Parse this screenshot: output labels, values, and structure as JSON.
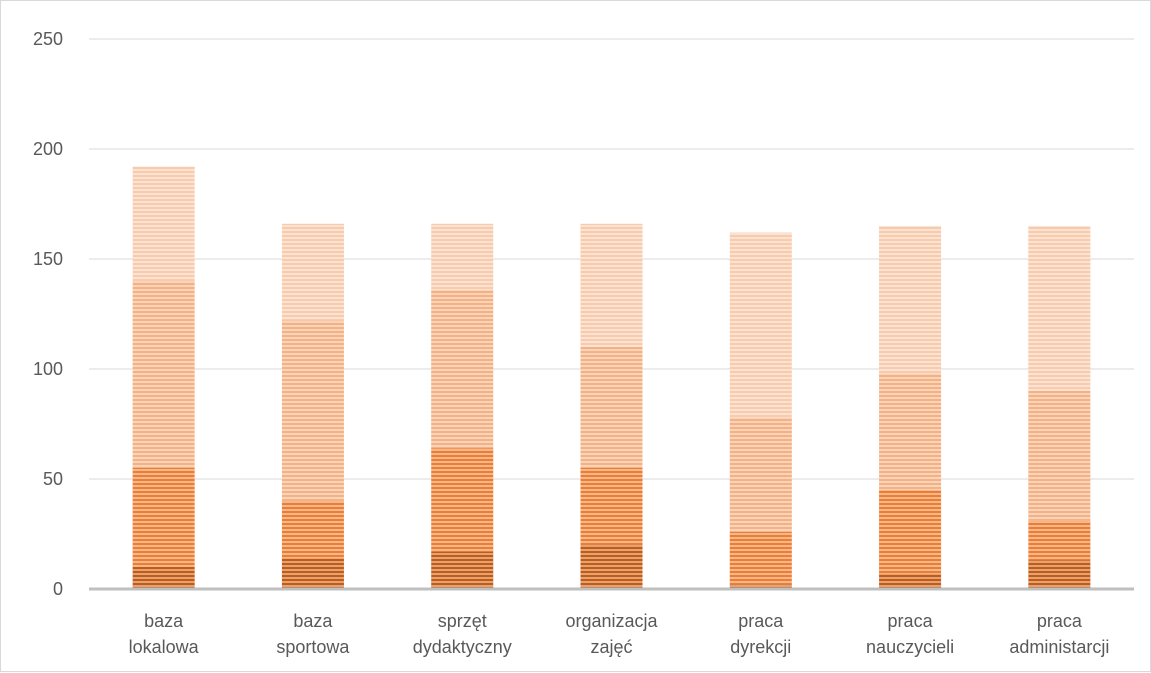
{
  "chart_data": {
    "type": "bar",
    "stacked": true,
    "categories": [
      [
        "baza",
        "lokalowa"
      ],
      [
        "baza",
        "sportowa"
      ],
      [
        "sprzęt",
        "dydaktyczny"
      ],
      [
        "organizacja",
        "zajęć"
      ],
      [
        "praca",
        "dyrekcji"
      ],
      [
        "praca",
        "nauczycieli"
      ],
      [
        "praca",
        "administarcji"
      ]
    ],
    "series": [
      {
        "values": [
          10,
          14,
          17,
          20,
          2,
          7,
          13
        ],
        "color": "#c55a11"
      },
      {
        "values": [
          45,
          26,
          47,
          35,
          24,
          38,
          18
        ],
        "color": "#ed7d31"
      },
      {
        "values": [
          85,
          82,
          72,
          55,
          52,
          53,
          59
        ],
        "color": "#f4b183"
      },
      {
        "values": [
          52,
          44,
          30,
          56,
          84,
          67,
          75
        ],
        "color": "#f8cbad"
      }
    ],
    "ylim": [
      0,
      250
    ],
    "yticks": [
      0,
      50,
      100,
      150,
      200,
      250
    ],
    "grid": true,
    "legend": "none"
  }
}
